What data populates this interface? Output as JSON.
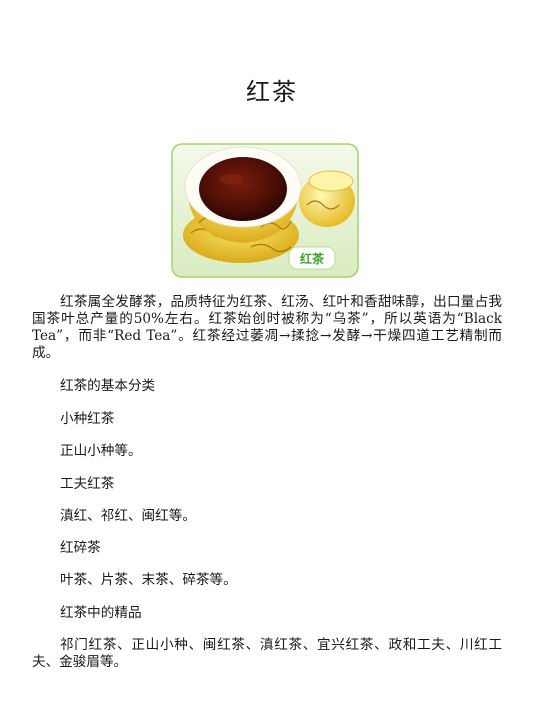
{
  "document": {
    "title": "红茶",
    "image_caption": "红茶",
    "intro": "红茶属全发酵茶，品质特征为红茶、红汤、红叶和香甜味醇，出口量占我国茶叶总产量的50%左右。红茶始创时被称为“乌茶”，所以英语为“Black Tea”，而非“Red Tea”。红茶经过萎凋→揉捻→发酵→干燥四道工艺精制而成。",
    "section_basic": "红茶的基本分类",
    "type1_name": "小种红茶",
    "type1_examples": "正山小种等。",
    "type2_name": "工夫红茶",
    "type2_examples": "滇红、祁红、闽红等。",
    "type3_name": "红碎茶",
    "type3_examples": "叶茶、片茶、末茶、碎茶等。",
    "section_best": "红茶中的精品",
    "best_list": "祁门红茶、正山小种、闽红茶、滇红茶、宜兴红茶、政和工夫、川红工夫、金骏眉等。"
  },
  "colors": {
    "photo_bg": "#e8f3d6",
    "photo_border": "#9fd36e",
    "tea": "#5a1208",
    "porcelain": "#f3d93c",
    "label_text": "#3aa52a"
  }
}
